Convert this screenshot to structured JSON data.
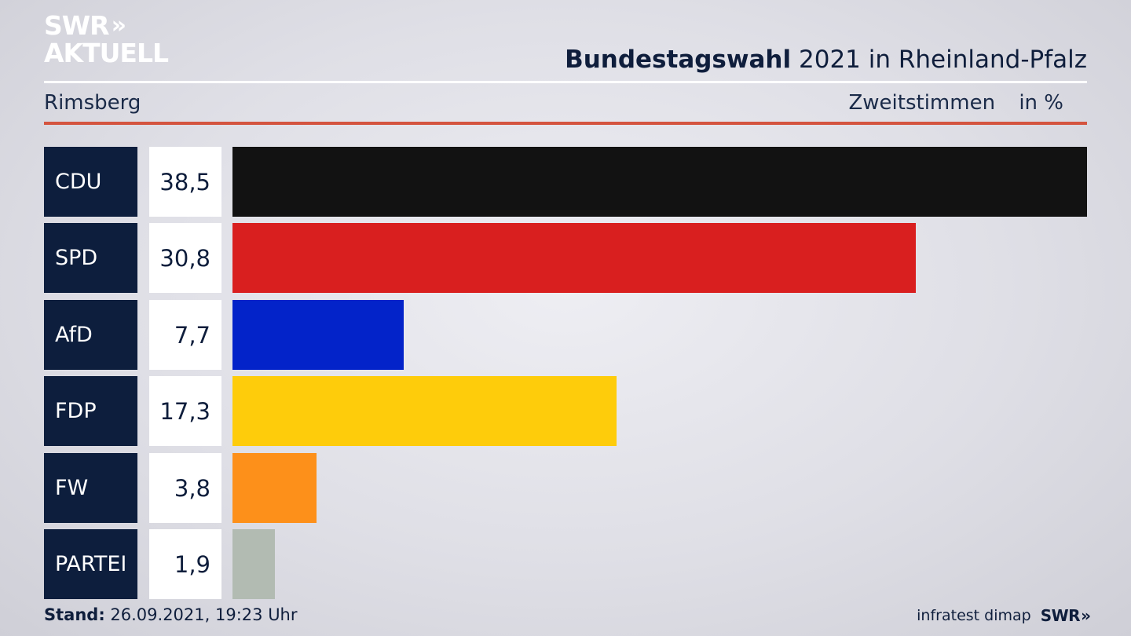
{
  "header": {
    "logo_top": "SWR",
    "logo_arrows": "»",
    "logo_bottom": "AKTUELL",
    "title_bold": "Bundestagswahl",
    "title_rest": "2021 in Rheinland-Pfalz",
    "region": "Rimsberg",
    "measure": "Zweitstimmen",
    "unit": "in %"
  },
  "colors": {
    "rule_accent": "#d4543f",
    "party_box": "#0d1e3d"
  },
  "chart_data": {
    "type": "bar",
    "orientation": "horizontal",
    "categories": [
      "CDU",
      "SPD",
      "AfD",
      "FDP",
      "FW",
      "PARTEI"
    ],
    "values": [
      38.5,
      30.8,
      7.7,
      17.3,
      3.8,
      1.9
    ],
    "value_labels": [
      "38,5",
      "30,8",
      "7,7",
      "17,3",
      "3,8",
      "1,9"
    ],
    "colors": [
      "#121212",
      "#d91f1f",
      "#0323c9",
      "#fecc0b",
      "#fd901a",
      "#b2bbb2"
    ],
    "xlim": [
      0,
      38.5
    ],
    "grid": false,
    "legend": "none"
  },
  "footer": {
    "stand_label": "Stand:",
    "stand_value": "26.09.2021, 19:23 Uhr",
    "source": "infratest dimap",
    "brand": "SWR",
    "brand_arrows": "»"
  }
}
